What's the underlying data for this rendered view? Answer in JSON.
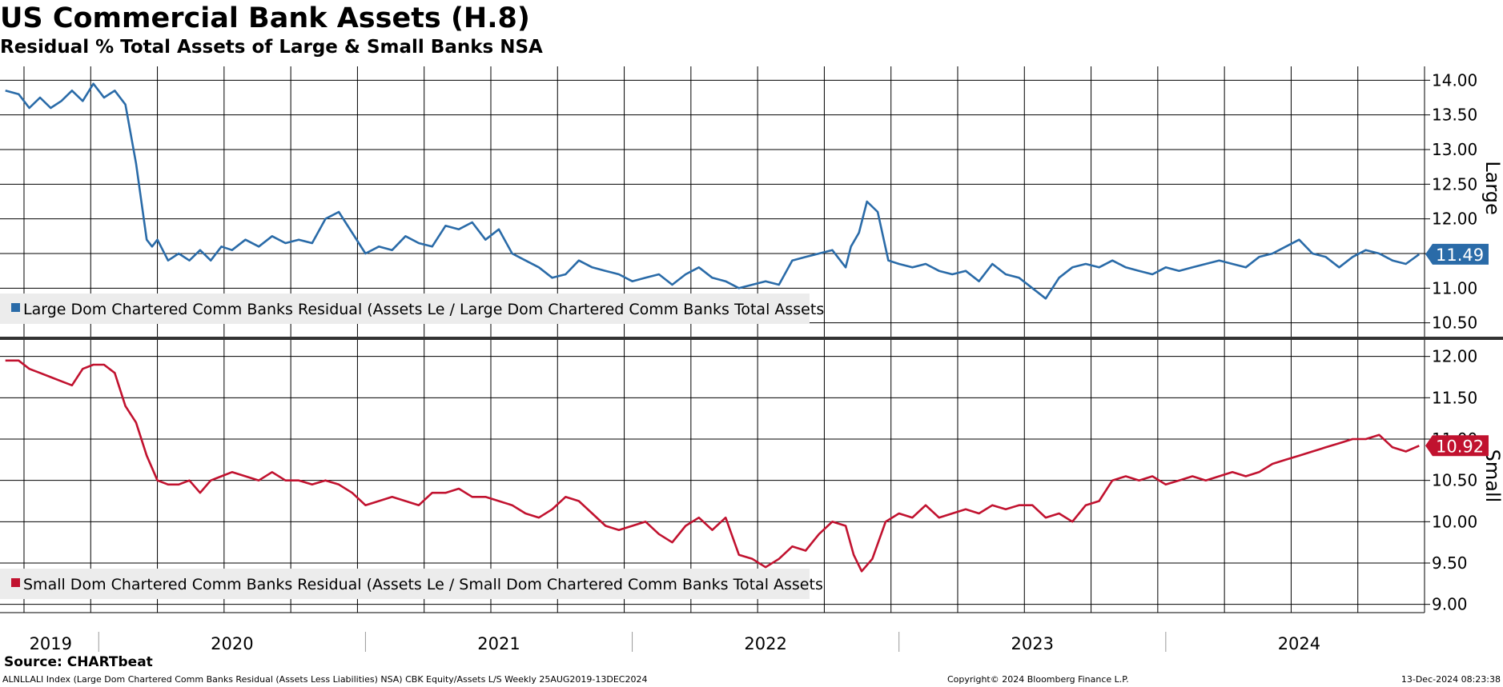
{
  "title": "US Commercial Bank Assets (H.8)",
  "subtitle": "Residual % Total Assets of Large & Small Banks NSA",
  "source": "Source: CHARTbeat",
  "footer": {
    "left": "ALNLLALI Index (Large Dom Chartered Comm Banks Residual (Assets Less Liabilities) NSA) CBK Equity/Assets L/S  Weekly 25AUG2019-13DEC2024",
    "middle": "Copyright© 2024 Bloomberg Finance L.P.",
    "right": "13-Dec-2024 08:23:38"
  },
  "colors": {
    "large": "#2a6ba8",
    "small": "#c1122f",
    "grid": "#000000",
    "legend_bg": "#ececec"
  },
  "chart_data": [
    {
      "type": "line",
      "panel": "top",
      "axis_title": "Large",
      "ylim": [
        10.3,
        14.2
      ],
      "yticks": [
        10.5,
        11.0,
        11.5,
        12.0,
        12.5,
        13.0,
        13.5,
        14.0
      ],
      "ytick_labels": [
        "10.50",
        "11.00",
        "11.50",
        "12.00",
        "12.50",
        "13.00",
        "13.50",
        "14.00"
      ],
      "last_value_label": "11.49",
      "legend": {
        "label": "Large Dom Chartered Comm Banks Residual (Assets Le / Large Dom Chartered Comm Banks Total Assets",
        "placement": "bottom-left"
      },
      "series": [
        {
          "name": "Large Dom Chartered Comm Banks Residual (Assets Le / Large Dom Chartered Comm Banks Total Assets",
          "x": [
            2019.65,
            2019.7,
            2019.74,
            2019.78,
            2019.82,
            2019.86,
            2019.9,
            2019.94,
            2019.98,
            2020.02,
            2020.06,
            2020.1,
            2020.14,
            2020.18,
            2020.2,
            2020.22,
            2020.26,
            2020.3,
            2020.34,
            2020.38,
            2020.42,
            2020.46,
            2020.5,
            2020.55,
            2020.6,
            2020.65,
            2020.7,
            2020.75,
            2020.8,
            2020.85,
            2020.9,
            2020.95,
            2021.0,
            2021.05,
            2021.1,
            2021.15,
            2021.2,
            2021.25,
            2021.3,
            2021.35,
            2021.4,
            2021.45,
            2021.5,
            2021.55,
            2021.6,
            2021.65,
            2021.7,
            2021.75,
            2021.8,
            2021.85,
            2021.9,
            2021.95,
            2022.0,
            2022.05,
            2022.1,
            2022.15,
            2022.2,
            2022.25,
            2022.3,
            2022.35,
            2022.4,
            2022.45,
            2022.5,
            2022.55,
            2022.6,
            2022.65,
            2022.7,
            2022.75,
            2022.8,
            2022.82,
            2022.85,
            2022.88,
            2022.92,
            2022.96,
            2023.0,
            2023.05,
            2023.1,
            2023.15,
            2023.2,
            2023.25,
            2023.3,
            2023.35,
            2023.4,
            2023.45,
            2023.5,
            2023.55,
            2023.6,
            2023.65,
            2023.7,
            2023.75,
            2023.8,
            2023.85,
            2023.9,
            2023.95,
            2024.0,
            2024.05,
            2024.1,
            2024.15,
            2024.2,
            2024.25,
            2024.3,
            2024.35,
            2024.4,
            2024.45,
            2024.5,
            2024.55,
            2024.6,
            2024.65,
            2024.7,
            2024.75,
            2024.8,
            2024.85,
            2024.9,
            2024.95
          ],
          "values": [
            13.85,
            13.8,
            13.6,
            13.75,
            13.6,
            13.7,
            13.85,
            13.7,
            13.95,
            13.75,
            13.85,
            13.65,
            12.8,
            11.7,
            11.6,
            11.7,
            11.4,
            11.5,
            11.4,
            11.55,
            11.4,
            11.6,
            11.55,
            11.7,
            11.6,
            11.75,
            11.65,
            11.7,
            11.65,
            12.0,
            12.1,
            11.8,
            11.5,
            11.6,
            11.55,
            11.75,
            11.65,
            11.6,
            11.9,
            11.85,
            11.95,
            11.7,
            11.85,
            11.5,
            11.4,
            11.3,
            11.15,
            11.2,
            11.4,
            11.3,
            11.25,
            11.2,
            11.1,
            11.15,
            11.2,
            11.05,
            11.2,
            11.3,
            11.15,
            11.1,
            11.0,
            11.05,
            11.1,
            11.05,
            11.4,
            11.45,
            11.5,
            11.55,
            11.3,
            11.6,
            11.8,
            12.25,
            12.1,
            11.4,
            11.35,
            11.3,
            11.35,
            11.25,
            11.2,
            11.25,
            11.1,
            11.35,
            11.2,
            11.15,
            11.0,
            10.85,
            11.15,
            11.3,
            11.35,
            11.3,
            11.4,
            11.3,
            11.25,
            11.2,
            11.3,
            11.25,
            11.3,
            11.35,
            11.4,
            11.35,
            11.3,
            11.45,
            11.5,
            11.6,
            11.7,
            11.5,
            11.45,
            11.3,
            11.45,
            11.55,
            11.5,
            11.4,
            11.35,
            11.49
          ]
        }
      ]
    },
    {
      "type": "line",
      "panel": "bottom",
      "axis_title": "Small",
      "ylim": [
        8.9,
        12.2
      ],
      "yticks": [
        9.0,
        9.5,
        10.0,
        10.5,
        11.0,
        11.5,
        12.0
      ],
      "ytick_labels": [
        "9.00",
        "9.50",
        "10.00",
        "10.50",
        "11.00",
        "11.50",
        "12.00"
      ],
      "last_value_label": "10.92",
      "legend": {
        "label": "Small Dom Chartered Comm Banks Residual (Assets Le / Small Dom Chartered Comm Banks Total Assets",
        "placement": "bottom-left"
      },
      "series": [
        {
          "name": "Small Dom Chartered Comm Banks Residual (Assets Le / Small Dom Chartered Comm Banks Total Assets",
          "x": [
            2019.65,
            2019.7,
            2019.74,
            2019.78,
            2019.82,
            2019.86,
            2019.9,
            2019.94,
            2019.98,
            2020.02,
            2020.06,
            2020.1,
            2020.14,
            2020.18,
            2020.22,
            2020.26,
            2020.3,
            2020.34,
            2020.38,
            2020.42,
            2020.46,
            2020.5,
            2020.55,
            2020.6,
            2020.65,
            2020.7,
            2020.75,
            2020.8,
            2020.85,
            2020.9,
            2020.95,
            2021.0,
            2021.05,
            2021.1,
            2021.15,
            2021.2,
            2021.25,
            2021.3,
            2021.35,
            2021.4,
            2021.45,
            2021.5,
            2021.55,
            2021.6,
            2021.65,
            2021.7,
            2021.75,
            2021.8,
            2021.85,
            2021.9,
            2021.95,
            2022.0,
            2022.05,
            2022.1,
            2022.15,
            2022.2,
            2022.25,
            2022.3,
            2022.35,
            2022.4,
            2022.45,
            2022.5,
            2022.55,
            2022.6,
            2022.65,
            2022.7,
            2022.75,
            2022.8,
            2022.83,
            2022.86,
            2022.9,
            2022.95,
            2023.0,
            2023.05,
            2023.1,
            2023.15,
            2023.2,
            2023.25,
            2023.3,
            2023.35,
            2023.4,
            2023.45,
            2023.5,
            2023.55,
            2023.6,
            2023.65,
            2023.7,
            2023.75,
            2023.8,
            2023.85,
            2023.9,
            2023.95,
            2024.0,
            2024.05,
            2024.1,
            2024.15,
            2024.2,
            2024.25,
            2024.3,
            2024.35,
            2024.4,
            2024.45,
            2024.5,
            2024.55,
            2024.6,
            2024.65,
            2024.7,
            2024.75,
            2024.8,
            2024.85,
            2024.9,
            2024.95
          ],
          "values": [
            11.95,
            11.95,
            11.85,
            11.8,
            11.75,
            11.7,
            11.65,
            11.85,
            11.9,
            11.9,
            11.8,
            11.4,
            11.2,
            10.8,
            10.5,
            10.45,
            10.45,
            10.5,
            10.35,
            10.5,
            10.55,
            10.6,
            10.55,
            10.5,
            10.6,
            10.5,
            10.5,
            10.45,
            10.5,
            10.45,
            10.35,
            10.2,
            10.25,
            10.3,
            10.25,
            10.2,
            10.35,
            10.35,
            10.4,
            10.3,
            10.3,
            10.25,
            10.2,
            10.1,
            10.05,
            10.15,
            10.3,
            10.25,
            10.1,
            9.95,
            9.9,
            9.95,
            10.0,
            9.85,
            9.75,
            9.95,
            10.05,
            9.9,
            10.05,
            9.6,
            9.55,
            9.45,
            9.55,
            9.7,
            9.65,
            9.85,
            10.0,
            9.95,
            9.6,
            9.4,
            9.55,
            10.0,
            10.1,
            10.05,
            10.2,
            10.05,
            10.1,
            10.15,
            10.1,
            10.2,
            10.15,
            10.2,
            10.2,
            10.05,
            10.1,
            10.0,
            10.2,
            10.25,
            10.5,
            10.55,
            10.5,
            10.55,
            10.45,
            10.5,
            10.55,
            10.5,
            10.55,
            10.6,
            10.55,
            10.6,
            10.7,
            10.75,
            10.8,
            10.85,
            10.9,
            10.95,
            11.0,
            11.0,
            11.05,
            10.9,
            10.85,
            10.92
          ]
        }
      ]
    }
  ],
  "x_axis": {
    "range": [
      2019.63,
      2024.97
    ],
    "year_labels": [
      {
        "label": "2019",
        "x": 2019.82
      },
      {
        "label": "2020",
        "x": 2020.5
      },
      {
        "label": "2021",
        "x": 2021.5
      },
      {
        "label": "2022",
        "x": 2022.5
      },
      {
        "label": "2023",
        "x": 2023.5
      },
      {
        "label": "2024",
        "x": 2024.5
      }
    ],
    "year_separators": [
      2020.0,
      2021.0,
      2022.0,
      2023.0,
      2024.0
    ],
    "gridlines": [
      2019.72,
      2019.97,
      2020.22,
      2020.47,
      2020.72,
      2020.97,
      2021.22,
      2021.47,
      2021.72,
      2021.97,
      2022.22,
      2022.47,
      2022.72,
      2022.97,
      2023.22,
      2023.47,
      2023.72,
      2023.97,
      2024.22,
      2024.47,
      2024.72,
      2024.97
    ]
  }
}
